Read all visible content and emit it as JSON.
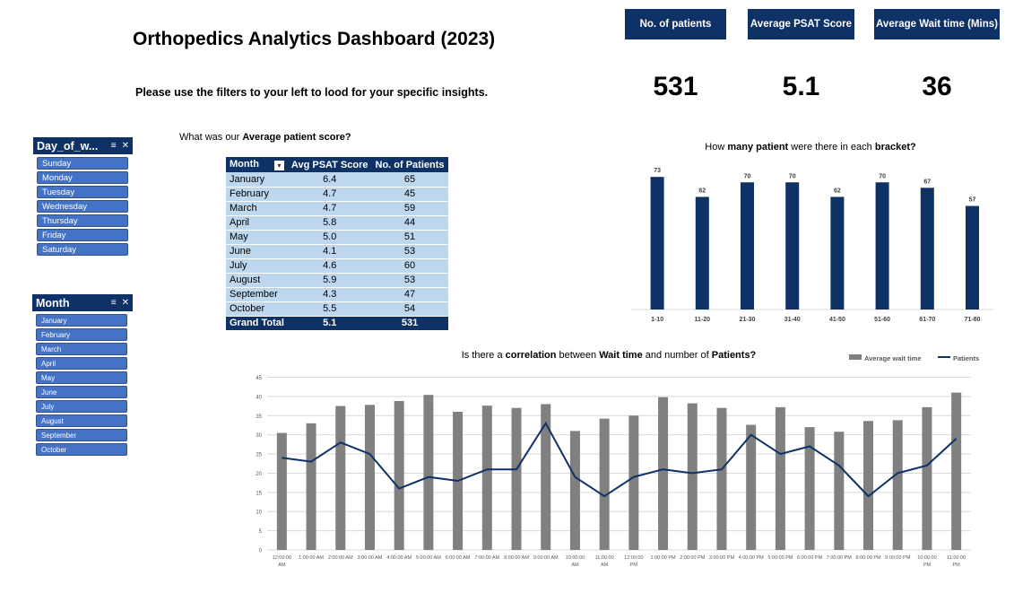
{
  "dashboard": {
    "title": "Orthopedics Analytics Dashboard (2023)",
    "subtitle": "Please use the filters to your left to lood for your specific insights."
  },
  "kpis": [
    {
      "label": "No. of patients",
      "value": "531"
    },
    {
      "label": "Average PSAT Score",
      "value": "5.1"
    },
    {
      "label": "Average Wait time (Mins)",
      "value": "36"
    }
  ],
  "slicers": {
    "day": {
      "title": "Day_of_w...",
      "items": [
        "Sunday",
        "Monday",
        "Tuesday",
        "Wednesday",
        "Thursday",
        "Friday",
        "Saturday"
      ]
    },
    "month": {
      "title": "Month",
      "items": [
        "January",
        "February",
        "March",
        "April",
        "May",
        "June",
        "July",
        "August",
        "September",
        "October"
      ]
    }
  },
  "score_question": {
    "pre": "What was our ",
    "bold": "Average patient score?"
  },
  "pivot": {
    "headers": [
      "Month",
      "Avg PSAT Score",
      "No. of Patients"
    ],
    "rows": [
      [
        "January",
        "6.4",
        "65"
      ],
      [
        "February",
        "4.7",
        "45"
      ],
      [
        "March",
        "4.7",
        "59"
      ],
      [
        "April",
        "5.8",
        "44"
      ],
      [
        "May",
        "5.0",
        "51"
      ],
      [
        "June",
        "4.1",
        "53"
      ],
      [
        "July",
        "4.6",
        "60"
      ],
      [
        "August",
        "5.9",
        "53"
      ],
      [
        "September",
        "4.3",
        "47"
      ],
      [
        "October",
        "5.5",
        "54"
      ]
    ],
    "total": [
      "Grand Total",
      "5.1",
      "531"
    ]
  },
  "colors": {
    "navy": "#0e3166",
    "slicer_blue": "#4472c4",
    "table_row": "#bdd7ee",
    "bar_gray": "#808080",
    "line_navy": "#0e3166"
  },
  "chart_data": [
    {
      "type": "bar",
      "title_parts": [
        {
          "text": "How ",
          "bold": false
        },
        {
          "text": "many patient",
          "bold": true
        },
        {
          "text": " were there in each ",
          "bold": false
        },
        {
          "text": "bracket?",
          "bold": true
        }
      ],
      "categories": [
        "1-10",
        "11-20",
        "21-30",
        "31-40",
        "41-50",
        "51-60",
        "61-70",
        "71-80"
      ],
      "values": [
        73,
        62,
        70,
        70,
        62,
        70,
        67,
        57
      ],
      "ylim": [
        0,
        80
      ],
      "data_labels": true,
      "grid": false
    },
    {
      "type": "bar+line",
      "title_parts": [
        {
          "text": "Is there a ",
          "bold": false
        },
        {
          "text": "correlation",
          "bold": true
        },
        {
          "text": " between ",
          "bold": false
        },
        {
          "text": "Wait time",
          "bold": true
        },
        {
          "text": " and number of ",
          "bold": false
        },
        {
          "text": "Patients?",
          "bold": true
        }
      ],
      "legend": "top-right",
      "categories": [
        "12:00:00 AM",
        "1:00:00 AM",
        "2:00:00 AM",
        "3:00:00 AM",
        "4:00:00 AM",
        "5:00:00 AM",
        "6:00:00 AM",
        "7:00:00 AM",
        "8:00:00 AM",
        "9:00:00 AM",
        "10:00:00 AM",
        "11:00:00 AM",
        "12:00:00 PM",
        "1:00:00 PM",
        "2:00:00 PM",
        "3:00:00 PM",
        "4:00:00 PM",
        "5:00:00 PM",
        "6:00:00 PM",
        "7:00:00 PM",
        "8:00:00 PM",
        "9:00:00 PM",
        "10:00:00 PM",
        "11:00:00 PM"
      ],
      "x_tick_labels": [
        "12:00:00\nAM",
        "1:00:00 AM",
        "2:00:00 AM",
        "3:00:00 AM",
        "4:00:00 AM",
        "5:00:00 AM",
        "6:00:00 AM",
        "7:00:00 AM",
        "8:00:00 AM",
        "9:00:00 AM",
        "10:00:00\nAM",
        "11:00:00\nAM",
        "12:00:00\nPM",
        "1:00:00 PM",
        "2:00:00 PM",
        "3:00:00 PM",
        "4:00:00 PM",
        "5:00:00 PM",
        "6:00:00 PM",
        "7:00:00 PM",
        "8:00:00 PM",
        "9:00:00 PM",
        "10:00:00\nPM",
        "11:00:00\nPM"
      ],
      "series": [
        {
          "name": "Average wait time",
          "type": "bar",
          "values": [
            30.5,
            33,
            37.5,
            37.8,
            38.8,
            40.4,
            36,
            37.6,
            37,
            38,
            31,
            34.2,
            35,
            39.8,
            38.2,
            37,
            32.6,
            37.2,
            32,
            30.8,
            33.6,
            33.8,
            37.2,
            41
          ]
        },
        {
          "name": "Patients",
          "type": "line",
          "values": [
            24,
            23,
            28,
            25,
            16,
            19,
            18,
            21,
            21,
            33,
            19,
            14,
            19,
            21,
            20,
            21,
            30,
            25,
            27,
            22,
            14,
            20,
            22,
            29
          ]
        }
      ],
      "yticks": [
        0,
        5,
        10,
        15,
        20,
        25,
        30,
        35,
        40,
        45
      ],
      "ylim": [
        0,
        45
      ],
      "grid": true
    }
  ]
}
